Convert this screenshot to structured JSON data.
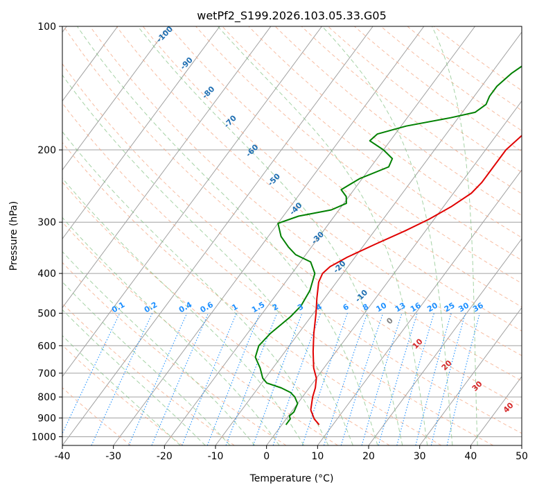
{
  "chart_data": {
    "type": "line",
    "subtype": "skew-t log-p",
    "title": "wetPf2_S199.2026.103.05.33.G05",
    "xlabel": "Temperature (°C)",
    "ylabel": "Pressure (hPa)",
    "xlim": [
      -40,
      50
    ],
    "ylim": [
      1050,
      100
    ],
    "y_scale": "log",
    "grid": true,
    "x_ticks": [
      "-40",
      "-30",
      "-20",
      "-10",
      "0",
      "10",
      "20",
      "30",
      "40",
      "50"
    ],
    "y_ticks": [
      "100",
      "200",
      "300",
      "400",
      "500",
      "600",
      "700",
      "800",
      "900",
      "1000"
    ],
    "colors": {
      "temperature": "#e00000",
      "dewpoint": "#008000",
      "isotherm": "#a0a0a0",
      "dry_adiabat": "#f4a582",
      "moist_adiabat": "#7fbf7f",
      "mixing_ratio": "#1e90ff",
      "theta_labels": "#1f6fb2",
      "wetbulb_labels": "#d62728"
    },
    "series": [
      {
        "name": "temperature",
        "points": [
          [
            7.3,
            935
          ],
          [
            5.5,
            905
          ],
          [
            3.5,
            860
          ],
          [
            2.0,
            800
          ],
          [
            1.2,
            760
          ],
          [
            0.0,
            720
          ],
          [
            -2.0,
            680
          ],
          [
            -4.5,
            620
          ],
          [
            -7.0,
            560
          ],
          [
            -9.5,
            500
          ],
          [
            -11.5,
            460
          ],
          [
            -13.5,
            420
          ],
          [
            -14.0,
            400
          ],
          [
            -13.5,
            385
          ],
          [
            -11.5,
            365
          ],
          [
            -8.0,
            340
          ],
          [
            -4.0,
            315
          ],
          [
            -1.0,
            295
          ],
          [
            1.5,
            275
          ],
          [
            3.5,
            255
          ],
          [
            4.0,
            240
          ],
          [
            4.0,
            220
          ],
          [
            4.0,
            200
          ],
          [
            5.0,
            185
          ],
          [
            6.5,
            170
          ],
          [
            7.0,
            160
          ],
          [
            7.5,
            150
          ],
          [
            8.5,
            140
          ],
          [
            11.5,
            125
          ],
          [
            15.0,
            113
          ],
          [
            18.5,
            102
          ],
          [
            19.5,
            100
          ]
        ]
      },
      {
        "name": "dewpoint",
        "points": [
          [
            0.8,
            935
          ],
          [
            0.8,
            905
          ],
          [
            0.2,
            890
          ],
          [
            0.5,
            870
          ],
          [
            0.0,
            830
          ],
          [
            -1.5,
            800
          ],
          [
            -3.0,
            780
          ],
          [
            -5.5,
            760
          ],
          [
            -9.0,
            740
          ],
          [
            -10.5,
            720
          ],
          [
            -12.5,
            680
          ],
          [
            -15.0,
            640
          ],
          [
            -16.0,
            600
          ],
          [
            -15.5,
            560
          ],
          [
            -14.0,
            510
          ],
          [
            -13.5,
            480
          ],
          [
            -14.0,
            440
          ],
          [
            -15.5,
            400
          ],
          [
            -18.0,
            375
          ],
          [
            -22.0,
            360
          ],
          [
            -24.5,
            345
          ],
          [
            -27.5,
            325
          ],
          [
            -30.0,
            302
          ],
          [
            -27.0,
            290
          ],
          [
            -21.5,
            280
          ],
          [
            -19.5,
            270
          ],
          [
            -20.5,
            260
          ],
          [
            -22.5,
            250
          ],
          [
            -20.5,
            235
          ],
          [
            -16.5,
            220
          ],
          [
            -17.0,
            210
          ],
          [
            -20.0,
            200
          ],
          [
            -24.0,
            190
          ],
          [
            -23.5,
            183
          ],
          [
            -19.0,
            175
          ],
          [
            -11.5,
            167
          ],
          [
            -7.5,
            162
          ],
          [
            -6.5,
            155
          ],
          [
            -7.0,
            148
          ],
          [
            -7.0,
            140
          ],
          [
            -6.0,
            130
          ],
          [
            -4.0,
            120
          ],
          [
            -2.0,
            110
          ],
          [
            -0.5,
            103
          ],
          [
            0.0,
            100
          ]
        ]
      }
    ],
    "dry_adiabat_labels": [
      "-100",
      "-90",
      "-80",
      "-70",
      "-60",
      "-50",
      "-40",
      "-30",
      "-20",
      "-10"
    ],
    "mixing_ratio_labels": [
      "0.1",
      "0.2",
      "0.4",
      "0.6",
      "1",
      "1.5",
      "2",
      "3",
      "4",
      "6",
      "8",
      "10",
      "13",
      "16",
      "20",
      "25",
      "30",
      "36"
    ],
    "wetbulb_labels": [
      "0",
      "10",
      "20",
      "30",
      "40"
    ]
  }
}
